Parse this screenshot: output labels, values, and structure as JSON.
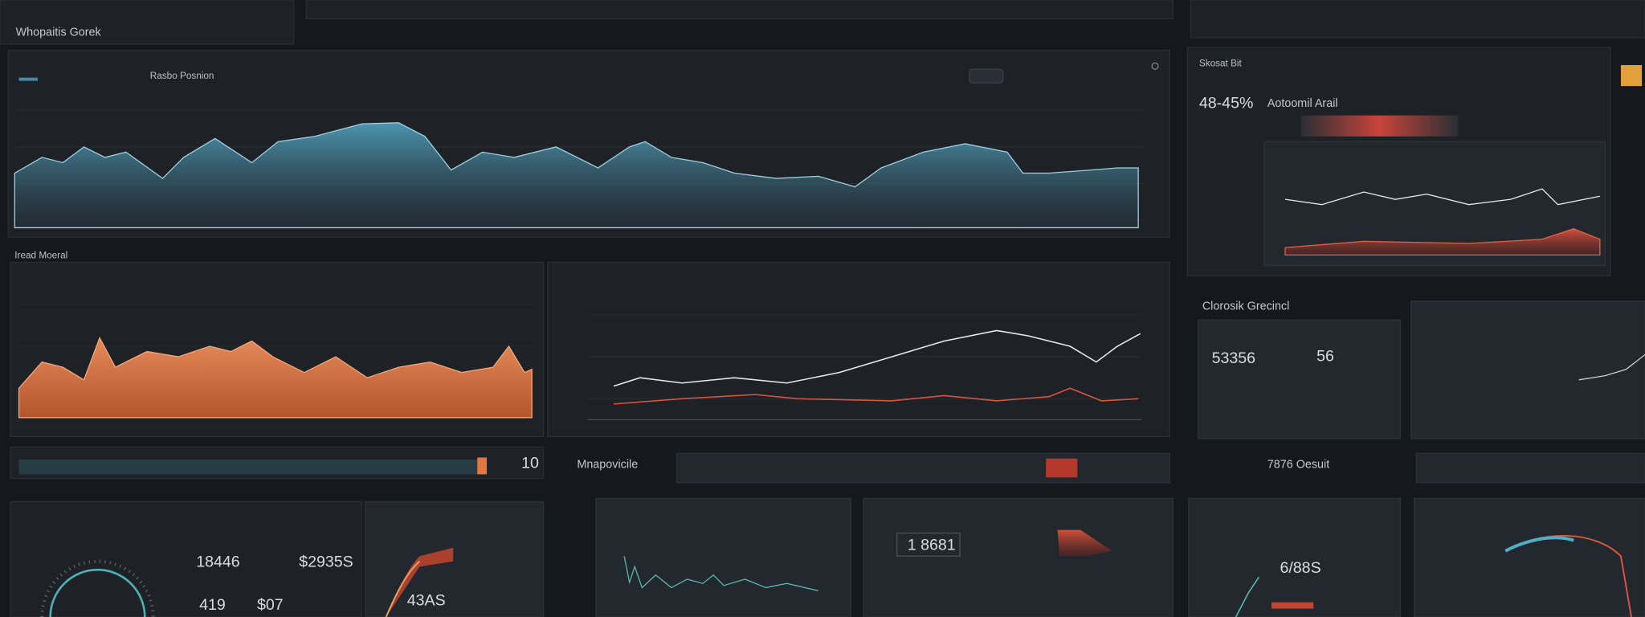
{
  "header": {
    "title": "Whopaitis Gorek"
  },
  "main_panel": {
    "title": "Rasbo Posnion"
  },
  "section_1": {
    "title": "Iread Moeral"
  },
  "side_panel": {
    "label": "Skosat Bit",
    "value": "48-45%",
    "title": "Aotoomil Arail"
  },
  "kpi_section": {
    "title": "Clorosik Grecincl",
    "values": [
      "53356",
      "56"
    ]
  },
  "bottom": {
    "title": "Mnapovicile",
    "count": "10",
    "side_title": "7876 Oesuit",
    "stats": [
      "18446",
      "$2935S",
      "419",
      "$07",
      "43AS",
      "1 8681",
      "6/88S"
    ]
  }
}
